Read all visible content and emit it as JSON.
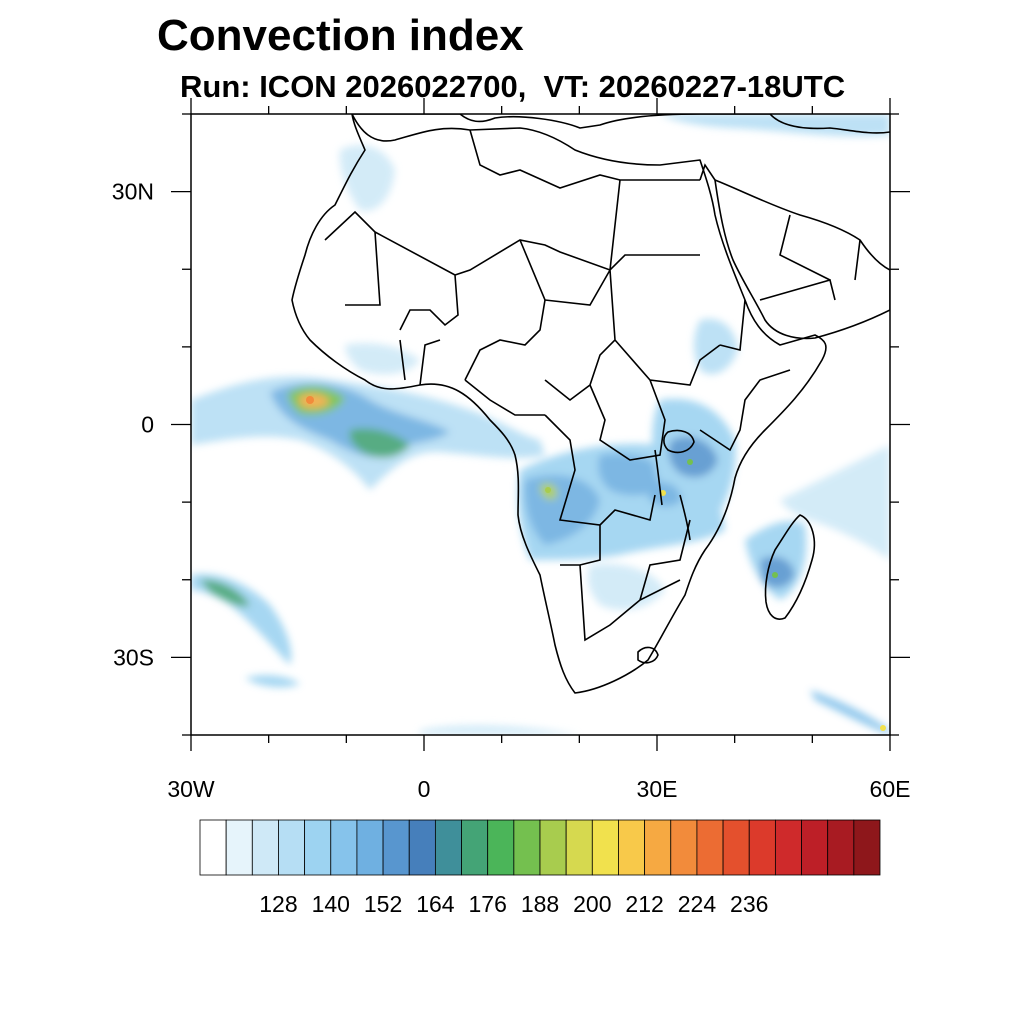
{
  "title": "Convection index",
  "subtitle": "Run: ICON 2026022700,  VT: 20260227-18UTC",
  "map": {
    "lon_range": [
      -30,
      60
    ],
    "lat_range": [
      -40,
      40
    ],
    "x_ticks": [
      {
        "value": -30,
        "label": "30W"
      },
      {
        "value": 0,
        "label": "0"
      },
      {
        "value": 30,
        "label": "30E"
      },
      {
        "value": 60,
        "label": "60E"
      }
    ],
    "y_ticks": [
      {
        "value": 30,
        "label": "30N"
      },
      {
        "value": 0,
        "label": "0"
      },
      {
        "value": -30,
        "label": "30S"
      }
    ]
  },
  "colorbar": {
    "labels": [
      "128",
      "140",
      "152",
      "164",
      "176",
      "188",
      "200",
      "212",
      "224",
      "236"
    ],
    "colors": [
      "#ffffff",
      "#e6f4fb",
      "#cfe9f7",
      "#b6def4",
      "#9dd3f1",
      "#86c3eb",
      "#6fb0e1",
      "#5896cf",
      "#467fbb",
      "#3f8f9a",
      "#44a476",
      "#4bb559",
      "#74c04f",
      "#a8cc4e",
      "#d6d94f",
      "#f1e14d",
      "#f8c94a",
      "#f6a942",
      "#f28b3b",
      "#ec6c33",
      "#e4502d",
      "#dc3a2b",
      "#cf2a2b",
      "#bd1f27",
      "#a81b22",
      "#8e171b"
    ]
  }
}
